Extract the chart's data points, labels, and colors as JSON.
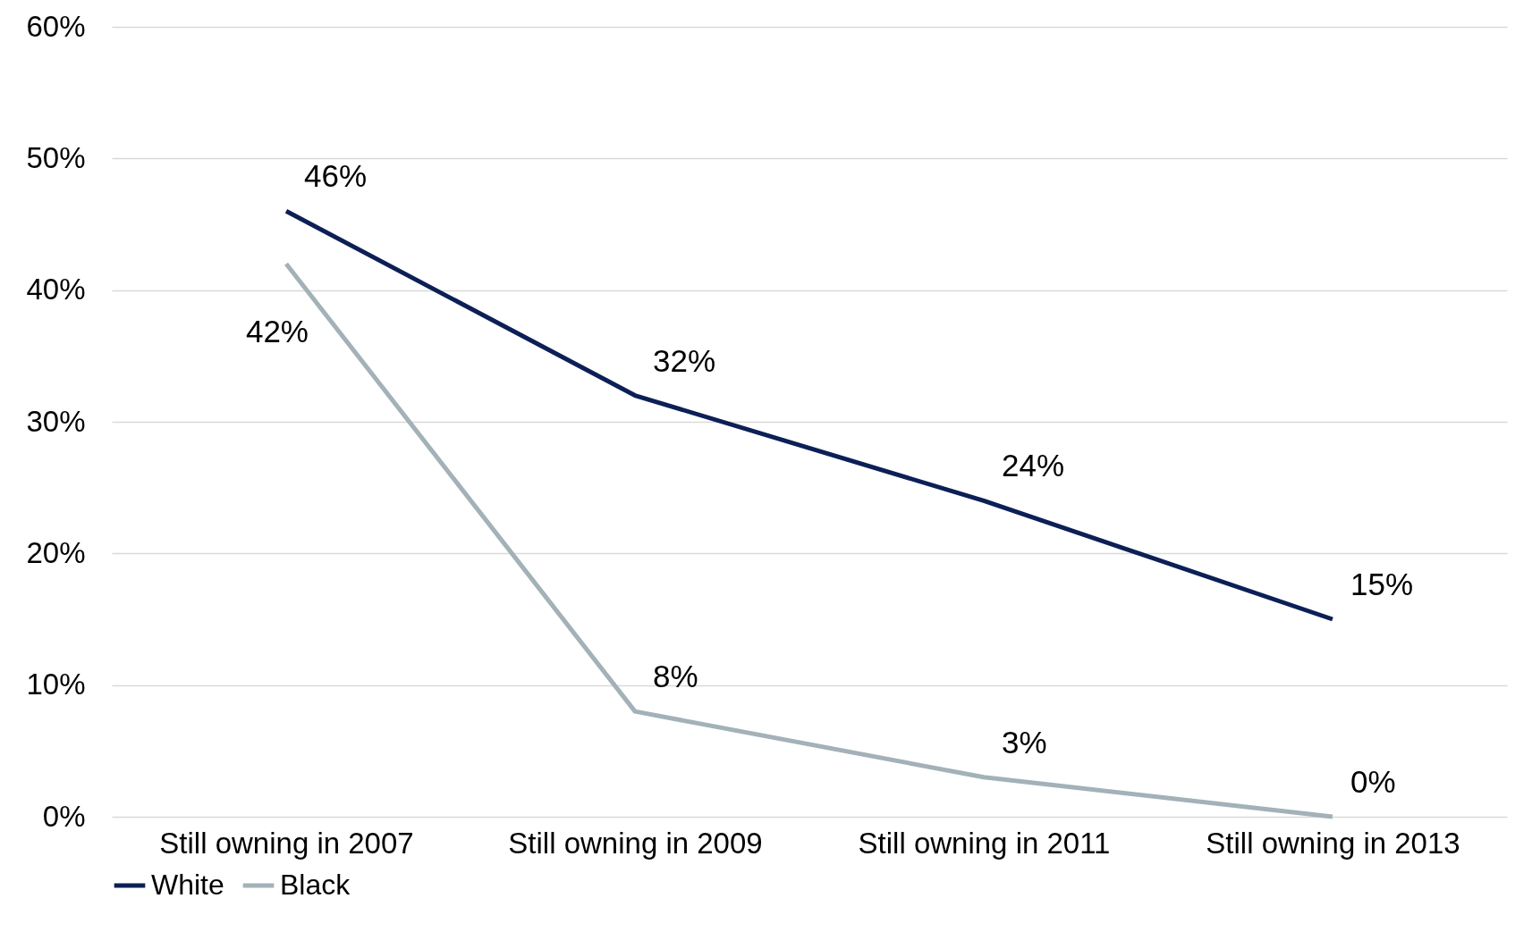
{
  "chart_data": {
    "type": "line",
    "categories": [
      "Still owning in 2007",
      "Still owning in 2009",
      "Still owning in 2011",
      "Still owning in 2013"
    ],
    "series": [
      {
        "name": "White",
        "color": "#0c1f56",
        "values": [
          46,
          32,
          24,
          15
        ],
        "value_labels": [
          "46%",
          "32%",
          "24%",
          "15%"
        ]
      },
      {
        "name": "Black",
        "color": "#a3b1b8",
        "values": [
          42,
          8,
          3,
          0
        ],
        "value_labels": [
          "42%",
          "8%",
          "3%",
          "0%"
        ]
      }
    ],
    "ylim": [
      0,
      60
    ],
    "yticks": [
      {
        "value": 0,
        "label": "0%"
      },
      {
        "value": 10,
        "label": "10%"
      },
      {
        "value": 20,
        "label": "20%"
      },
      {
        "value": 30,
        "label": "30%"
      },
      {
        "value": 40,
        "label": "40%"
      },
      {
        "value": 50,
        "label": "50%"
      },
      {
        "value": 60,
        "label": "60%"
      }
    ],
    "grid": "y",
    "legend": "bottom",
    "marker": "none",
    "line_style": "solid"
  }
}
